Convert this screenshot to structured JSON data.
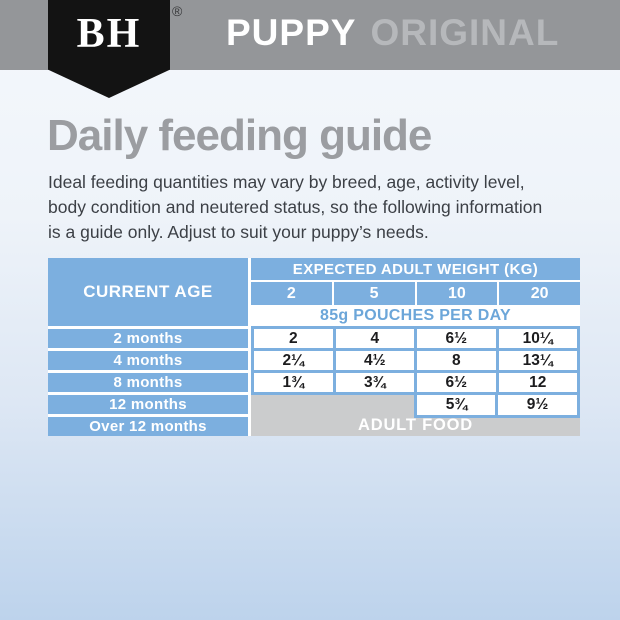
{
  "banner": {
    "logo": "BH",
    "registered_mark": "®",
    "product_line": "PUPPY",
    "variant": "ORIGINAL"
  },
  "heading": "Daily feeding guide",
  "intro": {
    "lines": [
      "Ideal feeding quantities may vary by breed, age, activity level,",
      "body condition and neutered status, so the following information",
      "is a guide only. Adjust to suit your puppy’s needs."
    ]
  },
  "table": {
    "corner_header": "CURRENT AGE",
    "weight_header": "EXPECTED ADULT WEIGHT (KG)",
    "weight_columns": [
      "2",
      "5",
      "10",
      "20"
    ],
    "unit_label": "85g POUCHES PER DAY",
    "age_rows": [
      "2 months",
      "4 months",
      "8 months",
      "12 months",
      "Over 12 months"
    ],
    "values": [
      [
        "2",
        "4",
        "6½",
        "10¼"
      ],
      [
        "2¼",
        "4½",
        "8",
        "13¼"
      ],
      [
        "1¾",
        "3¾",
        "6½",
        "12"
      ]
    ],
    "twelve_month_values": [
      "5¾",
      "9½"
    ],
    "adult_food_label": "ADULT FOOD"
  },
  "colors": {
    "banner_gray": "#949699",
    "shield_black": "#131313",
    "subtitle_gray": "#b6b8bb",
    "heading_gray": "#9b9da1",
    "body_text": "#3c4046",
    "table_blue": "#7cafdf",
    "table_gray": "#cbcccd"
  }
}
